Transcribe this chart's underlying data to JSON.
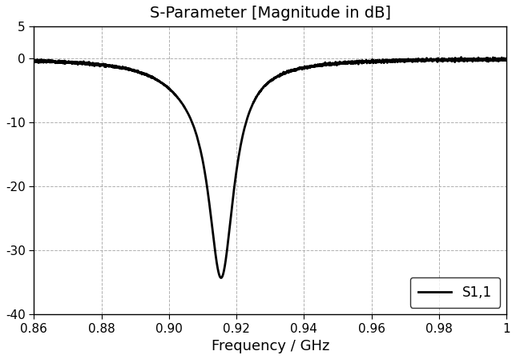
{
  "title": "S-Parameter [Magnitude in dB]",
  "xlabel": "Frequency / GHz",
  "ylabel": "",
  "xlim": [
    0.86,
    1.0
  ],
  "ylim": [
    -40,
    5
  ],
  "xticks": [
    0.86,
    0.88,
    0.9,
    0.92,
    0.94,
    0.96,
    0.98,
    1.0
  ],
  "yticks": [
    -40,
    -30,
    -20,
    -10,
    0,
    5
  ],
  "line_color": "#000000",
  "line_width": 2.0,
  "legend_label": "S1,1",
  "background_color": "#ffffff",
  "grid_color": "#b0b0b0",
  "resonance_freq": 0.9155,
  "resonance_depth": -32.0,
  "noise_amplitude": 0.12,
  "title_fontsize": 14,
  "label_fontsize": 13,
  "tick_fontsize": 11
}
